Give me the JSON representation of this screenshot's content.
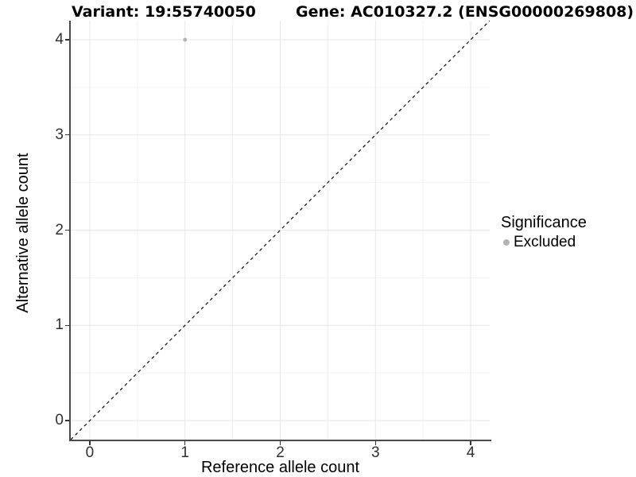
{
  "titles": {
    "variant": "Variant: 19:55740050",
    "gene": "Gene: AC010327.2 (ENSG00000269808)"
  },
  "chart_data": {
    "type": "scatter",
    "title_left": "Variant: 19:55740050",
    "title_right": "Gene: AC010327.2 (ENSG00000269808)",
    "xlabel": "Reference allele count",
    "ylabel": "Alternative allele count",
    "xlim": [
      -0.2,
      4.2
    ],
    "ylim": [
      -0.2,
      4.2
    ],
    "x_ticks": [
      0,
      1,
      2,
      3,
      4
    ],
    "y_ticks": [
      0,
      1,
      2,
      3,
      4
    ],
    "x_minor_ticks": [
      0.5,
      1.5,
      2.5,
      3.5
    ],
    "y_minor_ticks": [
      0.5,
      1.5,
      2.5,
      3.5
    ],
    "grid": "on",
    "legend_position": "right",
    "series": [
      {
        "name": "Excluded",
        "color": "#b3b3b3",
        "points": [
          {
            "x": 1,
            "y": 4
          }
        ]
      }
    ],
    "reference_line": {
      "type": "identity",
      "label": "y = x",
      "style": "dashed",
      "color": "#000000"
    },
    "legend": {
      "title": "Significance",
      "items": [
        {
          "label": "Excluded",
          "color": "#b3b3b3"
        }
      ]
    }
  },
  "colors": {
    "background": "#ffffff",
    "grid_major": "#e6e6e6",
    "grid_minor": "#f2f2f2",
    "axis_line": "#4a4a4a",
    "tick_label": "#303030",
    "excluded_point": "#b3b3b3",
    "reference_line": "#000000"
  }
}
